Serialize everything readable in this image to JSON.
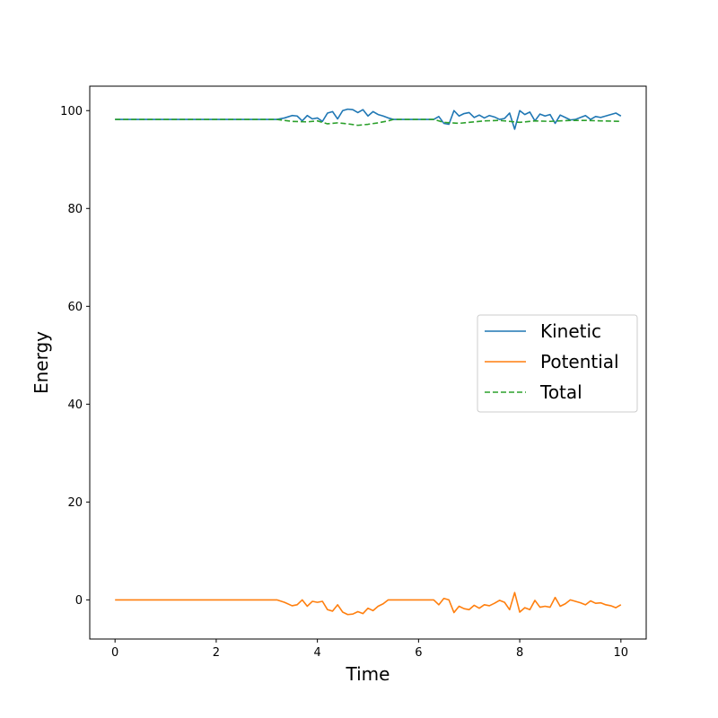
{
  "chart_data": {
    "type": "line",
    "title": "",
    "xlabel": "Time",
    "ylabel": "Energy",
    "xlim": [
      -0.5,
      10.5
    ],
    "ylim": [
      -8,
      105
    ],
    "xticks": [
      0,
      2,
      4,
      6,
      8,
      10
    ],
    "yticks": [
      0,
      20,
      40,
      60,
      80,
      100
    ],
    "grid": false,
    "legend_position": "center-right",
    "series": [
      {
        "name": "Kinetic",
        "color": "#1f77b4",
        "style": "solid",
        "x": [
          0,
          0.5,
          1,
          1.5,
          2,
          2.5,
          3,
          3.2,
          3.35,
          3.5,
          3.6,
          3.7,
          3.8,
          3.9,
          4.0,
          4.1,
          4.2,
          4.3,
          4.4,
          4.5,
          4.6,
          4.7,
          4.8,
          4.9,
          5.0,
          5.1,
          5.2,
          5.3,
          5.4,
          5.5,
          6.0,
          6.3,
          6.4,
          6.5,
          6.6,
          6.7,
          6.8,
          6.9,
          7.0,
          7.1,
          7.2,
          7.3,
          7.4,
          7.5,
          7.6,
          7.7,
          7.8,
          7.9,
          8.0,
          8.1,
          8.2,
          8.3,
          8.4,
          8.5,
          8.6,
          8.7,
          8.8,
          8.9,
          9.0,
          9.1,
          9.2,
          9.3,
          9.4,
          9.5,
          9.6,
          9.7,
          9.8,
          9.9,
          10.0
        ],
        "values": [
          98.2,
          98.2,
          98.2,
          98.2,
          98.2,
          98.2,
          98.2,
          98.2,
          98.5,
          99.0,
          98.9,
          97.9,
          99.0,
          98.3,
          98.5,
          97.8,
          99.5,
          99.8,
          98.3,
          100.0,
          100.3,
          100.2,
          99.6,
          100.2,
          98.9,
          99.8,
          99.2,
          98.9,
          98.5,
          98.2,
          98.2,
          98.2,
          98.8,
          97.4,
          97.2,
          100.0,
          98.9,
          99.4,
          99.6,
          98.6,
          99.1,
          98.5,
          99.0,
          98.7,
          98.2,
          98.4,
          99.5,
          96.2,
          100.0,
          99.2,
          99.7,
          97.9,
          99.3,
          98.9,
          99.2,
          97.4,
          99.1,
          98.6,
          98.1,
          98.2,
          98.6,
          99.0,
          98.2,
          98.8,
          98.6,
          98.9,
          99.2,
          99.5,
          98.9
        ]
      },
      {
        "name": "Potential",
        "color": "#ff7f0e",
        "style": "solid",
        "x": [
          0,
          0.5,
          1,
          1.5,
          2,
          2.5,
          3,
          3.2,
          3.35,
          3.5,
          3.6,
          3.7,
          3.8,
          3.9,
          4.0,
          4.1,
          4.2,
          4.3,
          4.4,
          4.5,
          4.6,
          4.7,
          4.8,
          4.9,
          5.0,
          5.1,
          5.2,
          5.3,
          5.4,
          5.5,
          6.0,
          6.3,
          6.4,
          6.5,
          6.6,
          6.7,
          6.8,
          6.9,
          7.0,
          7.1,
          7.2,
          7.3,
          7.4,
          7.5,
          7.6,
          7.7,
          7.8,
          7.9,
          8.0,
          8.1,
          8.2,
          8.3,
          8.4,
          8.5,
          8.6,
          8.7,
          8.8,
          8.9,
          9.0,
          9.1,
          9.2,
          9.3,
          9.4,
          9.5,
          9.6,
          9.7,
          9.8,
          9.9,
          10.0
        ],
        "values": [
          0,
          0,
          0,
          0,
          0,
          0,
          0,
          0,
          -0.5,
          -1.2,
          -1.0,
          0.0,
          -1.3,
          -0.3,
          -0.5,
          -0.3,
          -2.0,
          -2.3,
          -1.0,
          -2.5,
          -3.0,
          -2.9,
          -2.4,
          -2.8,
          -1.7,
          -2.2,
          -1.3,
          -0.8,
          0.0,
          0.0,
          0.0,
          0.0,
          -1.0,
          0.3,
          0.0,
          -2.6,
          -1.3,
          -1.8,
          -2.0,
          -1.1,
          -1.7,
          -1.0,
          -1.2,
          -0.7,
          -0.1,
          -0.5,
          -2.0,
          1.5,
          -2.5,
          -1.6,
          -2.0,
          -0.1,
          -1.5,
          -1.3,
          -1.5,
          0.5,
          -1.3,
          -0.8,
          0.0,
          -0.3,
          -0.6,
          -1.0,
          -0.2,
          -0.7,
          -0.6,
          -1.0,
          -1.2,
          -1.6,
          -1.0
        ]
      },
      {
        "name": "Total",
        "color": "#2ca02c",
        "style": "dashed",
        "x": [
          0,
          0.5,
          1,
          1.5,
          2,
          2.5,
          3,
          3.2,
          3.5,
          3.8,
          4.0,
          4.2,
          4.4,
          4.6,
          4.8,
          5.0,
          5.2,
          5.4,
          5.5,
          6.0,
          6.3,
          6.5,
          6.8,
          7.0,
          7.3,
          7.6,
          8.0,
          8.3,
          8.6,
          9.0,
          9.3,
          9.6,
          10.0
        ],
        "values": [
          98.2,
          98.2,
          98.2,
          98.2,
          98.2,
          98.2,
          98.2,
          98.2,
          97.8,
          97.7,
          97.9,
          97.3,
          97.5,
          97.3,
          97.0,
          97.2,
          97.5,
          97.9,
          98.2,
          98.2,
          98.2,
          97.6,
          97.4,
          97.6,
          97.9,
          98.0,
          97.6,
          97.9,
          97.8,
          98.0,
          98.0,
          97.9,
          97.8
        ]
      }
    ]
  }
}
